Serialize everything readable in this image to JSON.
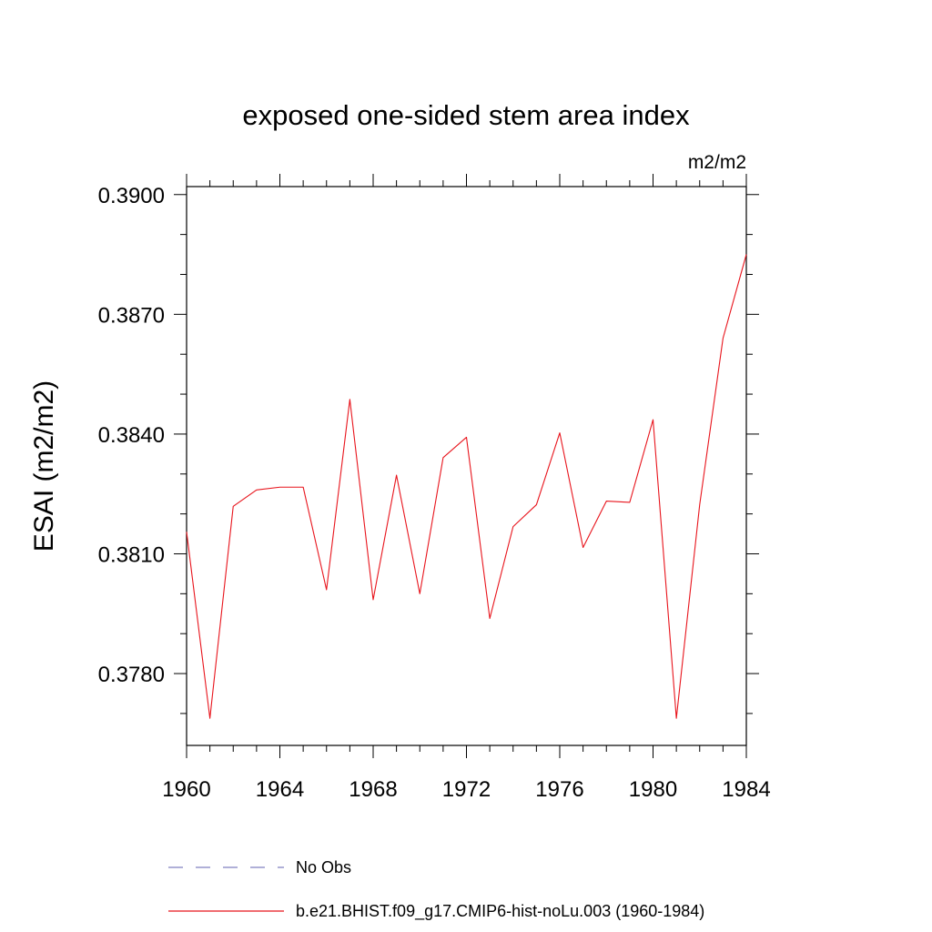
{
  "chart_data": {
    "type": "line",
    "title": "exposed one-sided stem area index",
    "units": "m2/m2",
    "ylabel": "ESAI  (m2/m2)",
    "xlim": [
      1960,
      1984
    ],
    "ylim": [
      0.3762,
      0.3902
    ],
    "xticks": [
      1960,
      1964,
      1968,
      1972,
      1976,
      1980,
      1984
    ],
    "xtick_labels": [
      "1960",
      "1964",
      "1968",
      "1972",
      "1976",
      "1980",
      "1984"
    ],
    "yticks": [
      0.378,
      0.381,
      0.384,
      0.387,
      0.39
    ],
    "ytick_labels": [
      "0.3780",
      "0.3810",
      "0.3840",
      "0.3870",
      "0.3900"
    ],
    "y_minor_step": 0.001,
    "x_minor_step": 1,
    "series": [
      {
        "name": "b.e21.BHIST.f09_g17.CMIP6-hist-noLu.003 (1960-1984)",
        "color": "#e8141c",
        "style": "solid",
        "x": [
          1960,
          1961,
          1962,
          1963,
          1964,
          1965,
          1966,
          1967,
          1968,
          1969,
          1970,
          1971,
          1972,
          1973,
          1974,
          1975,
          1976,
          1977,
          1978,
          1979,
          1980,
          1981,
          1982,
          1983,
          1984
        ],
        "y": [
          0.38155,
          0.37688,
          0.38219,
          0.3826,
          0.38267,
          0.38267,
          0.3801,
          0.38487,
          0.37985,
          0.38297,
          0.38,
          0.38341,
          0.38392,
          0.37938,
          0.38168,
          0.38223,
          0.38403,
          0.38116,
          0.38232,
          0.38229,
          0.38436,
          0.37688,
          0.38223,
          0.3864,
          0.3885
        ]
      }
    ],
    "legend": {
      "placement": "bottom",
      "entries": [
        {
          "label": "No Obs",
          "color": "#8080c0",
          "style": "dashed"
        },
        {
          "label": "b.e21.BHIST.f09_g17.CMIP6-hist-noLu.003 (1960-1984)",
          "color": "#e8141c",
          "style": "solid"
        }
      ]
    }
  }
}
